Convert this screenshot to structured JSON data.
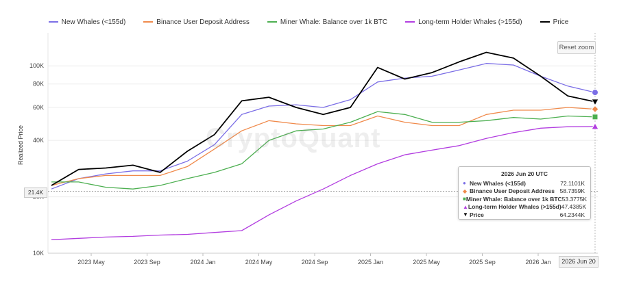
{
  "legend": [
    {
      "name": "New Whales (<155d)",
      "color": "#7b6ee6"
    },
    {
      "name": "Binance User Deposit Address",
      "color": "#f08a4b"
    },
    {
      "name": "Miner Whale: Balance over 1k BTC",
      "color": "#4caf50"
    },
    {
      "name": "Long-term Holder Whales (>155d)",
      "color": "#b23de0"
    },
    {
      "name": "Price",
      "color": "#000000"
    }
  ],
  "reset_zoom": "Reset zoom",
  "watermark": "CryptoQuant",
  "crosshair_label": "21.4K",
  "date_label": "2026 Jun 20",
  "tooltip": {
    "date": "2026 Jun 20 UTC",
    "rows": [
      {
        "symbol": "●",
        "name": "New Whales (<155d)",
        "value": "72.1101K",
        "color": "#7b6ee6"
      },
      {
        "symbol": "◆",
        "name": "Binance User Deposit Address",
        "value": "58.7359K",
        "color": "#f08a4b"
      },
      {
        "symbol": "■",
        "name": "Miner Whale: Balance over 1k BTC",
        "value": "53.3775K",
        "color": "#4caf50"
      },
      {
        "symbol": "▲",
        "name": "Long-term Holder Whales (>155d)",
        "value": "47.4385K",
        "color": "#b23de0"
      },
      {
        "symbol": "▼",
        "name": "Price",
        "value": "64.2344K",
        "color": "#000000"
      }
    ]
  },
  "chart_data": {
    "type": "line",
    "ylabel": "Realized Price",
    "yscale": "log",
    "ylim": [
      10000,
      150000
    ],
    "y_ticks": [
      {
        "value": 10000,
        "label": "10K"
      },
      {
        "value": 20000,
        "label": "20K"
      },
      {
        "value": 40000,
        "label": "40K"
      },
      {
        "value": 60000,
        "label": "60K"
      },
      {
        "value": 80000,
        "label": "80K"
      },
      {
        "value": 100000,
        "label": "100K"
      }
    ],
    "x_ticks": [
      "2023 May",
      "2023 Sep",
      "2024 Jan",
      "2024 May",
      "2024 Sep",
      "2025 Jan",
      "2025 May",
      "2025 Sep",
      "2026 Jan"
    ],
    "crosshair_y": 21400,
    "x": [
      "2023 Feb",
      "2023 Apr",
      "2023 Jun",
      "2023 Aug",
      "2023 Oct",
      "2023 Dec",
      "2024 Feb",
      "2024 Apr",
      "2024 Jun",
      "2024 Aug",
      "2024 Oct",
      "2024 Dec",
      "2025 Feb",
      "2025 Apr",
      "2025 Jun",
      "2025 Aug",
      "2025 Oct",
      "2025 Dec",
      "2026 Feb",
      "2026 Apr",
      "2026 Jun 20"
    ],
    "series": [
      {
        "name": "New Whales (<155d)",
        "color": "#7b6ee6",
        "values": [
          22000,
          25000,
          26500,
          27500,
          27500,
          31000,
          38000,
          55000,
          61000,
          62000,
          60000,
          66000,
          82000,
          86000,
          88000,
          95000,
          103000,
          101000,
          88000,
          78000,
          72110
        ]
      },
      {
        "name": "Binance User Deposit Address",
        "color": "#f08a4b",
        "values": [
          23000,
          25000,
          26000,
          26000,
          26000,
          29000,
          36000,
          45000,
          51000,
          49000,
          48000,
          48000,
          54000,
          50000,
          48000,
          48000,
          55000,
          58000,
          58000,
          60000,
          58736
        ]
      },
      {
        "name": "Miner Whale: Balance over 1k BTC",
        "color": "#4caf50",
        "values": [
          24000,
          24000,
          22500,
          22000,
          23000,
          25000,
          27000,
          30000,
          40000,
          45000,
          46000,
          50000,
          57000,
          55000,
          50000,
          50000,
          51000,
          53000,
          52000,
          54000,
          53378
        ]
      },
      {
        "name": "Long-term Holder Whales (>155d)",
        "color": "#b23de0",
        "values": [
          11800,
          12000,
          12200,
          12300,
          12500,
          12600,
          12900,
          13200,
          16000,
          19000,
          22000,
          26000,
          30000,
          33500,
          35500,
          37500,
          41000,
          44000,
          46500,
          47300,
          47439
        ]
      },
      {
        "name": "Price",
        "color": "#000000",
        "values": [
          23000,
          28000,
          28500,
          29500,
          27000,
          35000,
          43000,
          65000,
          68000,
          60000,
          55000,
          60000,
          98000,
          85000,
          92000,
          105000,
          118000,
          110000,
          88000,
          69000,
          64234
        ]
      }
    ]
  }
}
